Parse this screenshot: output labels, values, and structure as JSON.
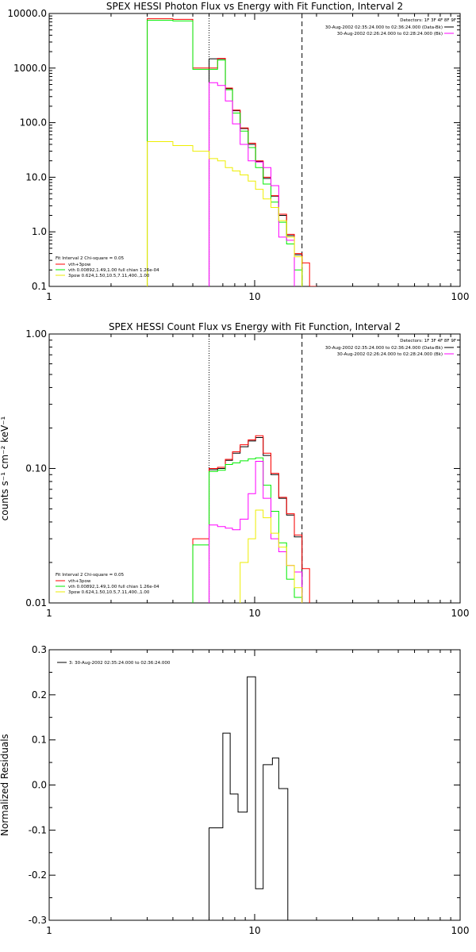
{
  "chart_data": [
    {
      "type": "line",
      "title": "SPEX HESSI Photon Flux vs Energy with Fit Function, Interval 2",
      "xlabel": "",
      "ylabel": "",
      "x_scale": "log",
      "y_scale": "log",
      "xlim": [
        1,
        100
      ],
      "ylim": [
        0.1,
        10000
      ],
      "x_ticks": [
        "1",
        "10",
        "100"
      ],
      "y_ticks": [
        "10000.0",
        "1000.0",
        "100.0",
        "10.0",
        "1.0",
        "0.1"
      ],
      "vlines": [
        {
          "x": 6,
          "style": "dotted"
        },
        {
          "x": 17,
          "style": "dashed"
        }
      ],
      "legend_topright": {
        "detectors": "Detectors: 1F 3F 4F 8F 9F",
        "entries": [
          {
            "text": "30-Aug-2002 02:35:24.000 to 02:36:24.000 (Data-Bk)",
            "color": "#000000"
          },
          {
            "text": "30-Aug-2002 02:26:24.000 to 02:28:24.000 (Bk)",
            "color": "#ff00ff"
          }
        ]
      },
      "legend_bottomleft": {
        "header": "Fit Interval 2   Chi-square = 0.05",
        "entries": [
          {
            "text": "vth+3pow",
            "color": "#ff0000"
          },
          {
            "text": "vth 0.00892,1.49,1.00  full chian 1.26e-04",
            "color": "#00ee00"
          },
          {
            "text": "3pow 0.624,1.50,10.5,7.11,400.,1.00",
            "color": "#eeee00"
          }
        ]
      },
      "series": [
        {
          "color": "#000000",
          "edges": [
            6.0,
            6.6,
            7.2,
            7.8,
            8.5,
            9.3,
            10.1,
            11.0,
            12.0,
            13.1,
            14.3,
            15.6,
            17.0
          ],
          "values": [
            1480,
            1480,
            420,
            165,
            78,
            40,
            19.5,
            9.5,
            4.5,
            2.0,
            0.85,
            0.38
          ]
        },
        {
          "color": "#ff0000",
          "edges": [
            3.0,
            4.0,
            5.0,
            6.0,
            6.6,
            7.2,
            7.8,
            8.5,
            9.3,
            10.1,
            11.0,
            12.0,
            13.1,
            14.3,
            15.6,
            17.0,
            18.5,
            20.0
          ],
          "values": [
            8000,
            7800,
            1000,
            1000,
            1500,
            430,
            170,
            80,
            42,
            20,
            10,
            4.6,
            2.1,
            0.9,
            0.4,
            0.27,
            0.1
          ]
        },
        {
          "color": "#00ee00",
          "edges": [
            3.0,
            4.0,
            5.0,
            6.0,
            6.6,
            7.2,
            7.8,
            8.5,
            9.3,
            10.1,
            11.0,
            12.0,
            13.1,
            14.3,
            15.6,
            17.0
          ],
          "values": [
            7500,
            7300,
            950,
            950,
            1400,
            400,
            150,
            70,
            35,
            15,
            7.5,
            3.5,
            1.5,
            0.6,
            0.2
          ]
        },
        {
          "color": "#ff00ff",
          "edges": [
            6.0,
            6.6,
            7.2,
            7.8,
            8.5,
            9.3,
            10.1,
            11.0,
            12.0,
            13.1,
            14.3,
            15.6
          ],
          "values": [
            540,
            480,
            250,
            95,
            40,
            20,
            19,
            15,
            7,
            0.8,
            0.7
          ]
        },
        {
          "color": "#eeee00",
          "edges": [
            3.0,
            4.0,
            5.0,
            6.0,
            6.6,
            7.2,
            7.8,
            8.5,
            9.3,
            10.1,
            11.0,
            12.0,
            13.1,
            14.3,
            15.6,
            17.0
          ],
          "values": [
            45,
            38,
            30,
            22,
            20,
            15,
            13,
            11,
            8.5,
            6.0,
            4.0,
            2.8,
            1.6,
            0.8,
            0.35
          ]
        }
      ]
    },
    {
      "type": "line",
      "title": "SPEX HESSI Count Flux vs Energy with Fit Function, Interval 2",
      "xlabel": "",
      "ylabel": "counts s⁻¹ cm⁻² keV⁻¹",
      "x_scale": "log",
      "y_scale": "log",
      "xlim": [
        1,
        100
      ],
      "ylim": [
        0.01,
        1.0
      ],
      "x_ticks": [
        "1",
        "10",
        "100"
      ],
      "y_ticks": [
        "1.00",
        "0.10",
        "0.01"
      ],
      "vlines": [
        {
          "x": 6,
          "style": "dotted"
        },
        {
          "x": 17,
          "style": "dashed"
        }
      ],
      "legend_topright": {
        "detectors": "Detectors: 1F 3F 4F 8F 9F",
        "entries": [
          {
            "text": "30-Aug-2002 02:35:24.000 to 02:36:24.000 (Data-Bk)",
            "color": "#000000"
          },
          {
            "text": "30-Aug-2002 02:26:24.000 to 02:28:24.000 (Bk)",
            "color": "#ff00ff"
          }
        ]
      },
      "legend_bottomleft": {
        "header": "Fit Interval 2   Chi-square = 0.05",
        "entries": [
          {
            "text": "vth+3pow",
            "color": "#ff0000"
          },
          {
            "text": "vth 0.00892,1.49,1.00  full chian 1.26e-04",
            "color": "#00ee00"
          },
          {
            "text": "3pow 0.624,1.50,10.5,7.11,400.,1.00",
            "color": "#eeee00"
          }
        ]
      },
      "series": [
        {
          "color": "#000000",
          "edges": [
            6.0,
            6.6,
            7.2,
            7.8,
            8.5,
            9.3,
            10.1,
            11.0,
            12.0,
            13.1,
            14.3,
            15.6,
            17.0
          ],
          "values": [
            0.098,
            0.1,
            0.115,
            0.13,
            0.145,
            0.16,
            0.17,
            0.125,
            0.09,
            0.06,
            0.045,
            0.031
          ]
        },
        {
          "color": "#ff0000",
          "edges": [
            5.0,
            6.0,
            6.6,
            7.2,
            7.8,
            8.5,
            9.3,
            10.1,
            11.0,
            12.0,
            13.1,
            14.3,
            15.6,
            17.0,
            18.5
          ],
          "values": [
            0.03,
            0.1,
            0.102,
            0.117,
            0.133,
            0.15,
            0.163,
            0.175,
            0.13,
            0.092,
            0.061,
            0.046,
            0.032,
            0.018
          ]
        },
        {
          "color": "#00ee00",
          "edges": [
            5.0,
            6.0,
            6.6,
            7.2,
            7.8,
            8.5,
            9.3,
            10.1,
            11.0,
            12.0,
            13.1,
            14.3,
            15.6,
            17.0
          ],
          "values": [
            0.027,
            0.095,
            0.097,
            0.107,
            0.11,
            0.114,
            0.118,
            0.12,
            0.075,
            0.048,
            0.028,
            0.015,
            0.011
          ]
        },
        {
          "color": "#ff00ff",
          "edges": [
            6.0,
            6.6,
            7.2,
            7.8,
            8.5,
            9.3,
            10.1,
            11.0,
            12.0,
            13.1,
            14.3,
            15.6,
            17.0
          ],
          "values": [
            0.038,
            0.037,
            0.036,
            0.035,
            0.042,
            0.065,
            0.113,
            0.06,
            0.03,
            0.024,
            0.019,
            0.017
          ]
        },
        {
          "color": "#eeee00",
          "edges": [
            8.5,
            9.3,
            10.1,
            11.0,
            12.0,
            13.1,
            14.3,
            15.6,
            17.0
          ],
          "values": [
            0.02,
            0.03,
            0.049,
            0.043,
            0.033,
            0.026,
            0.019,
            0.013
          ]
        }
      ]
    },
    {
      "type": "line",
      "title": "",
      "xlabel": "",
      "ylabel": "Normalized Residuals",
      "x_scale": "log",
      "y_scale": "linear",
      "xlim": [
        1,
        100
      ],
      "ylim": [
        -0.3,
        0.3
      ],
      "x_ticks": [
        "1",
        "10",
        "100"
      ],
      "y_ticks": [
        "0.3",
        "0.2",
        "0.1",
        "0.0",
        "-0.1",
        "-0.2",
        "-0.3"
      ],
      "legend": {
        "text": "3: 30-Aug-2002 02:35:24.000 to 02:36:24.000",
        "color": "#000000"
      },
      "series": [
        {
          "color": "#000000",
          "edges": [
            6.0,
            7.0,
            7.6,
            8.3,
            9.2,
            10.1,
            11.0,
            12.2,
            13.1,
            14.5,
            15.6,
            17.0
          ],
          "values": [
            -0.095,
            0.115,
            -0.02,
            -0.06,
            0.24,
            -0.23,
            0.045,
            0.06,
            -0.008,
            -0.3,
            -0.3
          ]
        }
      ]
    }
  ]
}
